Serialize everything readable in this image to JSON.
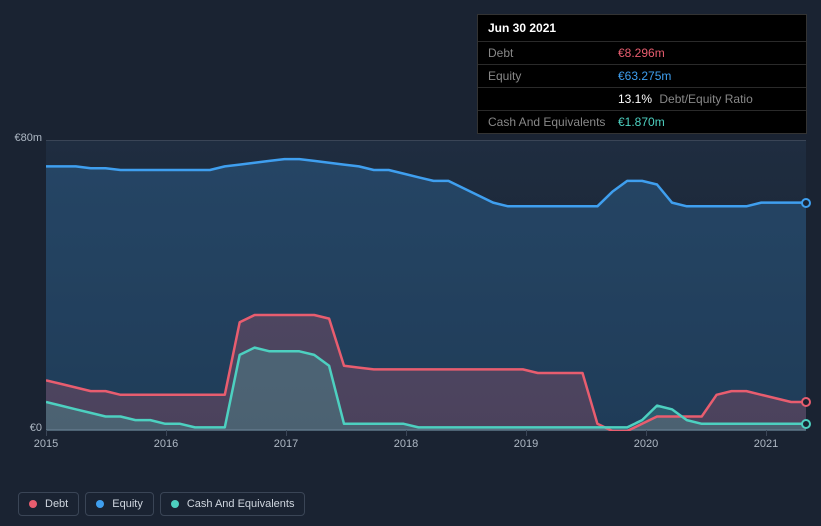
{
  "tooltip": {
    "date": "Jun 30 2021",
    "rows": [
      {
        "key": "debt",
        "label": "Debt",
        "value": "€8.296m",
        "cls": "debt"
      },
      {
        "key": "equity",
        "label": "Equity",
        "value": "€63.275m",
        "cls": "equity"
      },
      {
        "key": "ratio",
        "label": "",
        "value": "13.1%",
        "suffix": "Debt/Equity Ratio",
        "cls": "ratio"
      },
      {
        "key": "cash",
        "label": "Cash And Equivalents",
        "value": "€1.870m",
        "cls": "cash"
      }
    ]
  },
  "chart": {
    "type": "area-line",
    "y_axis": {
      "min": 0,
      "max": 80,
      "labels": [
        "€80m",
        "€0"
      ],
      "unit": "€m"
    },
    "x_axis": {
      "years": [
        "2015",
        "2016",
        "2017",
        "2018",
        "2019",
        "2020",
        "2021"
      ]
    },
    "colors": {
      "debt": "#e85d6f",
      "equity": "#3f9fef",
      "cash": "#4dd0c0",
      "bg_top": "#1f2d40",
      "bg_bot": "#17212f",
      "grid": "#3a4556",
      "text": "#aeb8c4"
    },
    "series": {
      "equity": [
        73,
        73,
        73,
        72.5,
        72.5,
        72,
        72,
        72,
        72,
        72,
        72,
        72,
        73,
        73.5,
        74,
        74.5,
        75,
        75,
        74.5,
        74,
        73.5,
        73,
        72,
        72,
        71,
        70,
        69,
        69,
        67,
        65,
        63,
        62,
        62,
        62,
        62,
        62,
        62,
        62,
        66,
        69,
        69,
        68,
        63,
        62,
        62,
        62,
        62,
        62,
        63,
        63,
        63,
        63
      ],
      "debt": [
        14,
        13,
        12,
        11,
        11,
        10,
        10,
        10,
        10,
        10,
        10,
        10,
        10,
        30,
        32,
        32,
        32,
        32,
        32,
        31,
        18,
        17.5,
        17,
        17,
        17,
        17,
        17,
        17,
        17,
        17,
        17,
        17,
        17,
        16,
        16,
        16,
        16,
        2,
        0,
        0,
        2,
        4,
        4,
        4,
        4,
        10,
        11,
        11,
        10,
        9,
        8,
        8
      ],
      "cash": [
        8,
        7,
        6,
        5,
        4,
        4,
        3,
        3,
        2,
        2,
        1,
        1,
        1,
        21,
        23,
        22,
        22,
        22,
        21,
        18,
        2,
        2,
        2,
        2,
        2,
        1,
        1,
        1,
        1,
        1,
        1,
        1,
        1,
        1,
        1,
        1,
        1,
        1,
        1,
        1,
        3,
        7,
        6,
        3,
        2,
        2,
        2,
        2,
        2,
        2,
        2,
        2
      ]
    },
    "line_width": 2.5,
    "fill_opacity": 0.22
  },
  "legend": [
    {
      "key": "debt",
      "label": "Debt",
      "color": "#e85d6f"
    },
    {
      "key": "equity",
      "label": "Equity",
      "color": "#3f9fef"
    },
    {
      "key": "cash",
      "label": "Cash And Equivalents",
      "color": "#4dd0c0"
    }
  ]
}
